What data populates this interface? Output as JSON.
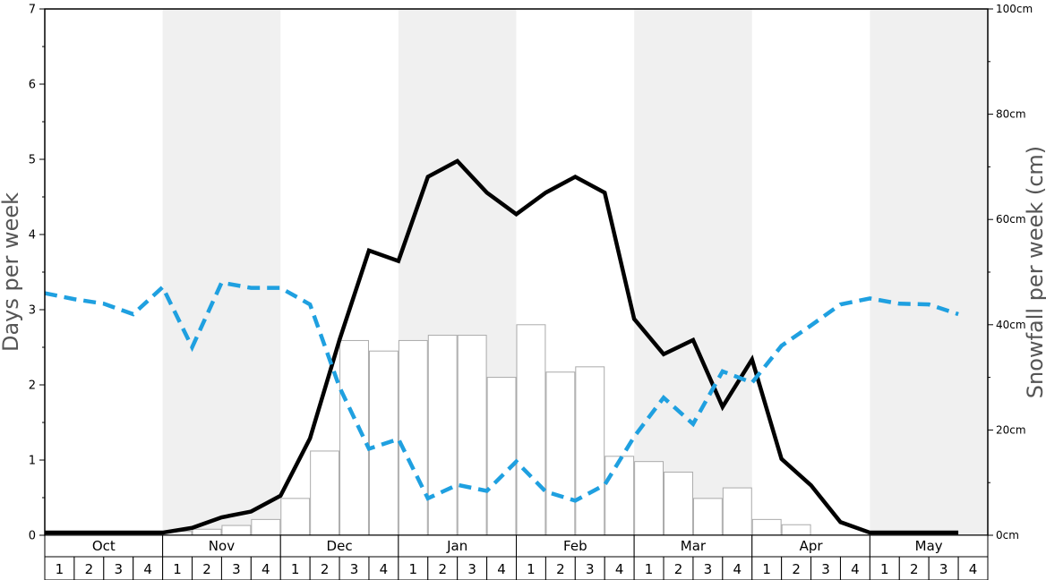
{
  "chart_data": {
    "type": "bar",
    "y_left": {
      "label": "Days per week",
      "min": 0,
      "max": 7,
      "ticks": [
        "0",
        "1",
        "2",
        "3",
        "4",
        "5",
        "6",
        "7"
      ]
    },
    "y_right": {
      "label": "Snowfall per week (cm)",
      "min": 0,
      "max": 100,
      "ticks": [
        "0cm",
        "20cm",
        "40cm",
        "60cm",
        "80cm",
        "100cm"
      ]
    },
    "months": [
      "Oct",
      "Nov",
      "Dec",
      "Jan",
      "Feb",
      "Mar",
      "Apr",
      "May"
    ],
    "weeks": [
      "1",
      "2",
      "3",
      "4"
    ],
    "shaded_months": [
      "Nov",
      "Jan",
      "Mar",
      "May"
    ],
    "series": [
      {
        "kind": "bar",
        "axis": "left",
        "color": "#ffffff",
        "stroke": "#aaaaaa",
        "values": [
          0,
          0,
          0,
          0,
          0.05,
          0.08,
          0.13,
          0.21,
          0.49,
          1.12,
          2.59,
          2.45,
          2.59,
          2.66,
          2.66,
          2.1,
          2.8,
          2.17,
          2.24,
          1.05,
          0.98,
          0.84,
          0.49,
          0.63,
          0.21,
          0.14,
          0,
          0,
          0,
          0,
          0,
          0
        ]
      },
      {
        "kind": "line",
        "axis": "right",
        "color": "#000000",
        "dashed": false,
        "values": [
          0.5,
          0.5,
          0.5,
          0.5,
          0.5,
          1.4,
          3.4,
          4.5,
          7.5,
          18.4,
          37.1,
          54.1,
          52.1,
          68.1,
          71.1,
          65.1,
          61.0,
          65.1,
          68.1,
          65.1,
          41.1,
          34.4,
          37.1,
          24.4,
          33.4,
          14.5,
          9.5,
          2.5,
          0.5,
          0.5,
          0.5,
          0.5
        ]
      },
      {
        "kind": "line",
        "axis": "left",
        "color": "#1fa0e0",
        "dashed": true,
        "values": [
          3.22,
          3.14,
          3.08,
          2.94,
          3.3,
          2.5,
          3.36,
          3.29,
          3.29,
          3.07,
          1.97,
          1.15,
          1.28,
          0.49,
          0.67,
          0.59,
          0.98,
          0.58,
          0.46,
          0.67,
          1.31,
          1.83,
          1.48,
          2.18,
          2.03,
          2.52,
          2.79,
          3.07,
          3.15,
          3.08,
          3.07,
          2.94
        ]
      }
    ],
    "grid": false,
    "legend": "none"
  }
}
